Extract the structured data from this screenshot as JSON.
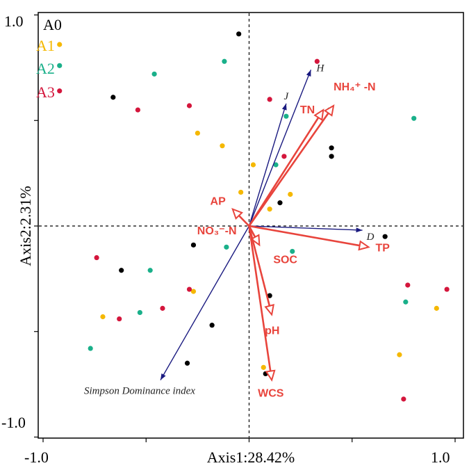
{
  "colors": {
    "A0": "#000000",
    "A1": "#f5b800",
    "A2": "#1ab08a",
    "A3": "#d4163c",
    "env_arrow": "#e8443c",
    "species_arrow": "#1a1a80"
  },
  "chart_data": {
    "type": "scatter",
    "title": "",
    "xlabel": "Axis1:28.42%",
    "ylabel": "Axis2:2.31%",
    "xlim": [
      -1.0,
      1.0
    ],
    "ylim": [
      -1.0,
      1.0
    ],
    "x_tick_labels": [
      "-1.0",
      "1.0"
    ],
    "y_tick_labels": [
      "1.0",
      "-1.0"
    ],
    "grid": false,
    "reference_lines": "dashed lines at x=0 and y=0",
    "legend_placement": "top-left",
    "series": [
      {
        "name": "A0",
        "color": "#000000",
        "points": [
          [
            -0.05,
            0.91
          ],
          [
            -0.66,
            0.61
          ],
          [
            0.15,
            0.11
          ],
          [
            0.4,
            0.37
          ],
          [
            0.4,
            0.33
          ],
          [
            -0.27,
            -0.09
          ],
          [
            -0.62,
            -0.21
          ],
          [
            0.1,
            -0.33
          ],
          [
            -0.18,
            -0.47
          ],
          [
            -0.3,
            -0.65
          ],
          [
            0.66,
            -0.05
          ],
          [
            0.08,
            -0.7
          ]
        ]
      },
      {
        "name": "A1",
        "color": "#f5b800",
        "points": [
          [
            -0.92,
            0.86
          ],
          [
            -0.25,
            0.44
          ],
          [
            -0.13,
            0.38
          ],
          [
            0.02,
            0.29
          ],
          [
            -0.04,
            0.16
          ],
          [
            0.2,
            0.15
          ],
          [
            0.1,
            0.08
          ],
          [
            0.73,
            -0.61
          ],
          [
            -0.71,
            -0.43
          ],
          [
            -0.27,
            -0.31
          ],
          [
            0.07,
            -0.67
          ],
          [
            0.91,
            -0.39
          ]
        ]
      },
      {
        "name": "A2",
        "color": "#1ab08a",
        "points": [
          [
            -0.92,
            0.76
          ],
          [
            -0.46,
            0.72
          ],
          [
            -0.12,
            0.78
          ],
          [
            0.18,
            0.52
          ],
          [
            0.39,
            0.55
          ],
          [
            0.8,
            0.51
          ],
          [
            0.13,
            0.29
          ],
          [
            -0.11,
            -0.1
          ],
          [
            0.21,
            -0.12
          ],
          [
            -0.48,
            -0.21
          ],
          [
            -0.53,
            -0.41
          ],
          [
            -0.77,
            -0.58
          ],
          [
            0.76,
            -0.36
          ]
        ]
      },
      {
        "name": "A3",
        "color": "#d4163c",
        "points": [
          [
            -0.92,
            0.64
          ],
          [
            -0.54,
            0.55
          ],
          [
            -0.29,
            0.57
          ],
          [
            0.33,
            0.78
          ],
          [
            0.1,
            0.6
          ],
          [
            0.17,
            0.33
          ],
          [
            -0.74,
            -0.15
          ],
          [
            -0.42,
            -0.39
          ],
          [
            -0.63,
            -0.44
          ],
          [
            -0.29,
            -0.3
          ],
          [
            0.77,
            -0.28
          ],
          [
            0.96,
            -0.3
          ],
          [
            0.75,
            -0.82
          ]
        ]
      }
    ],
    "environmental_vectors": [
      {
        "label": "NH₄⁺ -N",
        "x": 0.41,
        "y": 0.57
      },
      {
        "label": "TN",
        "x": 0.36,
        "y": 0.55
      },
      {
        "label": "AP",
        "x": -0.08,
        "y": 0.08
      },
      {
        "label": "NO₃⁻-N",
        "x": 0.0,
        "y": 0.0
      },
      {
        "label": "TP",
        "x": 0.58,
        "y": -0.1
      },
      {
        "label": "SOC",
        "x": 0.05,
        "y": -0.09
      },
      {
        "label": "pH",
        "x": 0.11,
        "y": -0.42
      },
      {
        "label": "WCS",
        "x": 0.11,
        "y": -0.73
      }
    ],
    "species_vectors": [
      {
        "label": "H",
        "x": 0.3,
        "y": 0.74
      },
      {
        "label": "J",
        "x": 0.18,
        "y": 0.58
      },
      {
        "label": "D",
        "x": 0.55,
        "y": -0.02
      },
      {
        "label": "Simpson Dominance index",
        "x": -0.43,
        "y": -0.73
      }
    ]
  }
}
